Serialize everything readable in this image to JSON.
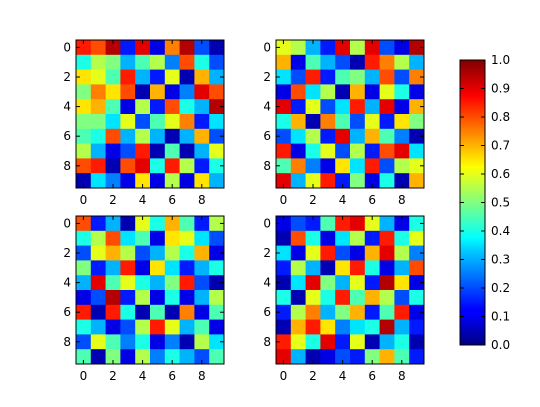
{
  "chart_data": {
    "type": "heatmap",
    "colormap": "jet",
    "grid": false,
    "colorbar": {
      "position": "right",
      "range": [
        0.0,
        1.0
      ],
      "ticks": [
        0.0,
        0.1,
        0.2,
        0.3,
        0.4,
        0.5,
        0.6,
        0.7,
        0.8,
        0.9,
        1.0
      ],
      "tick_labels": [
        "0.0",
        "0.1",
        "0.2",
        "0.3",
        "0.4",
        "0.5",
        "0.6",
        "0.7",
        "0.8",
        "0.9",
        "1.0"
      ]
    },
    "panels": [
      {
        "panel": "top-left",
        "xlim": [
          -0.5,
          9.5
        ],
        "ylim": [
          9.5,
          -0.5
        ],
        "x_ticks": [
          "0",
          "2",
          "4",
          "6",
          "8"
        ],
        "y_ticks": [
          "0",
          "2",
          "4",
          "6",
          "8"
        ],
        "values": [
          [
            0.85,
            0.8,
            0.95,
            0.15,
            0.9,
            0.1,
            0.75,
            0.95,
            0.2,
            0.05
          ],
          [
            0.4,
            0.55,
            0.5,
            0.3,
            0.45,
            0.55,
            0.25,
            0.8,
            0.4,
            0.2
          ],
          [
            0.65,
            0.6,
            0.45,
            0.85,
            0.3,
            0.15,
            0.6,
            0.05,
            0.7,
            0.3
          ],
          [
            0.5,
            0.75,
            0.65,
            0.8,
            0.05,
            0.7,
            0.1,
            0.25,
            0.9,
            0.8
          ],
          [
            0.65,
            0.7,
            0.45,
            0.1,
            0.55,
            0.15,
            0.8,
            0.4,
            0.3,
            0.95
          ],
          [
            0.5,
            0.5,
            0.35,
            0.6,
            0.2,
            0.45,
            0.6,
            0.75,
            0.15,
            0.35
          ],
          [
            0.45,
            0.4,
            0.8,
            0.3,
            0.55,
            0.3,
            0.05,
            0.3,
            0.7,
            0.2
          ],
          [
            0.55,
            0.3,
            0.1,
            0.2,
            0.85,
            0.05,
            0.45,
            0.05,
            0.3,
            0.6
          ],
          [
            0.8,
            0.85,
            0.05,
            0.8,
            0.9,
            0.4,
            0.85,
            0.55,
            0.15,
            0.4
          ],
          [
            0.05,
            0.35,
            0.25,
            0.1,
            0.65,
            0.1,
            0.55,
            0.1,
            0.65,
            0.3
          ]
        ]
      },
      {
        "panel": "top-right",
        "xlim": [
          -0.5,
          9.5
        ],
        "ylim": [
          9.5,
          -0.5
        ],
        "x_ticks": [
          "0",
          "2",
          "4",
          "6",
          "8"
        ],
        "y_ticks": [
          "0",
          "2",
          "4",
          "6",
          "8"
        ],
        "values": [
          [
            0.6,
            0.55,
            0.3,
            0.15,
            0.9,
            0.55,
            0.9,
            0.2,
            0.1,
            0.95
          ],
          [
            0.7,
            0.1,
            0.45,
            0.3,
            0.2,
            0.05,
            0.85,
            0.75,
            0.55,
            0.3
          ],
          [
            0.35,
            0.2,
            0.85,
            0.15,
            0.45,
            0.5,
            0.3,
            0.8,
            0.2,
            0.75
          ],
          [
            0.1,
            0.8,
            0.35,
            0.55,
            0.05,
            0.7,
            0.1,
            0.6,
            0.4,
            0.1
          ],
          [
            0.9,
            0.15,
            0.6,
            0.2,
            0.35,
            0.85,
            0.3,
            0.9,
            0.1,
            0.7
          ],
          [
            0.4,
            0.7,
            0.05,
            0.75,
            0.45,
            0.2,
            0.6,
            0.15,
            0.65,
            0.5
          ],
          [
            0.2,
            0.35,
            0.55,
            0.15,
            0.9,
            0.3,
            0.7,
            0.45,
            0.25,
            0.05
          ],
          [
            0.85,
            0.1,
            0.4,
            0.6,
            0.2,
            0.55,
            0.15,
            0.8,
            0.9,
            0.35
          ],
          [
            0.45,
            0.75,
            0.25,
            0.1,
            0.65,
            0.35,
            0.85,
            0.2,
            0.55,
            0.6
          ],
          [
            0.9,
            0.3,
            0.6,
            0.85,
            0.15,
            0.5,
            0.1,
            0.4,
            0.05,
            0.7
          ]
        ]
      },
      {
        "panel": "bottom-left",
        "xlim": [
          -0.5,
          9.5
        ],
        "ylim": [
          9.5,
          -0.5
        ],
        "x_ticks": [
          "0",
          "2",
          "4",
          "6",
          "8"
        ],
        "y_ticks": [
          "0",
          "2",
          "4",
          "6",
          "8"
        ],
        "values": [
          [
            0.8,
            0.15,
            0.3,
            0.05,
            0.6,
            0.4,
            0.7,
            0.45,
            0.15,
            0.55
          ],
          [
            0.4,
            0.55,
            0.8,
            0.35,
            0.45,
            0.1,
            0.65,
            0.6,
            0.35,
            0.2
          ],
          [
            0.2,
            0.6,
            0.7,
            0.55,
            0.2,
            0.3,
            0.55,
            0.4,
            0.7,
            0.1
          ],
          [
            0.5,
            0.15,
            0.3,
            0.85,
            0.1,
            0.65,
            0.35,
            0.15,
            0.3,
            0.4
          ],
          [
            0.3,
            0.9,
            0.45,
            0.6,
            0.4,
            0.3,
            0.5,
            0.85,
            0.2,
            0.05
          ],
          [
            0.1,
            0.2,
            0.95,
            0.15,
            0.55,
            0.1,
            0.4,
            0.1,
            0.3,
            0.55
          ],
          [
            0.85,
            0.05,
            0.85,
            0.4,
            0.05,
            0.45,
            0.05,
            0.75,
            0.1,
            0.45
          ],
          [
            0.4,
            0.3,
            0.1,
            0.2,
            0.55,
            0.85,
            0.6,
            0.3,
            0.45,
            0.1
          ],
          [
            0.2,
            0.6,
            0.45,
            0.25,
            0.4,
            0.1,
            0.25,
            0.05,
            0.55,
            0.35
          ],
          [
            0.45,
            0.05,
            0.5,
            0.1,
            0.55,
            0.25,
            0.4,
            0.3,
            0.2,
            0.45
          ]
        ]
      },
      {
        "panel": "bottom-right",
        "xlim": [
          -0.5,
          9.5
        ],
        "ylim": [
          9.5,
          -0.5
        ],
        "x_ticks": [
          "0",
          "2",
          "4",
          "6",
          "8"
        ],
        "y_ticks": [
          "0",
          "2",
          "4",
          "6",
          "8"
        ],
        "values": [
          [
            0.1,
            0.2,
            0.15,
            0.45,
            0.85,
            0.9,
            0.6,
            0.3,
            0.1,
            0.4
          ],
          [
            0.05,
            0.8,
            0.4,
            0.1,
            0.35,
            0.55,
            0.15,
            0.85,
            0.4,
            0.6
          ],
          [
            0.35,
            0.1,
            0.6,
            0.85,
            0.2,
            0.1,
            0.7,
            0.9,
            0.55,
            0.25
          ],
          [
            0.15,
            0.55,
            0.3,
            0.05,
            0.65,
            0.85,
            0.4,
            0.1,
            0.3,
            0.8
          ],
          [
            0.05,
            0.35,
            0.9,
            0.5,
            0.3,
            0.6,
            0.15,
            0.95,
            0.65,
            0.1
          ],
          [
            0.4,
            0.05,
            0.6,
            0.4,
            0.85,
            0.45,
            0.7,
            0.55,
            0.2,
            0.4
          ],
          [
            0.15,
            0.55,
            0.75,
            0.3,
            0.5,
            0.7,
            0.15,
            0.45,
            0.85,
            0.1
          ],
          [
            0.05,
            0.7,
            0.85,
            0.65,
            0.25,
            0.35,
            0.4,
            0.95,
            0.3,
            0.15
          ],
          [
            0.85,
            0.6,
            0.4,
            0.9,
            0.15,
            0.6,
            0.05,
            0.3,
            0.4,
            0.05
          ],
          [
            0.9,
            0.3,
            0.05,
            0.1,
            0.2,
            0.15,
            0.5,
            0.7,
            0.45,
            0.15
          ]
        ]
      }
    ]
  }
}
